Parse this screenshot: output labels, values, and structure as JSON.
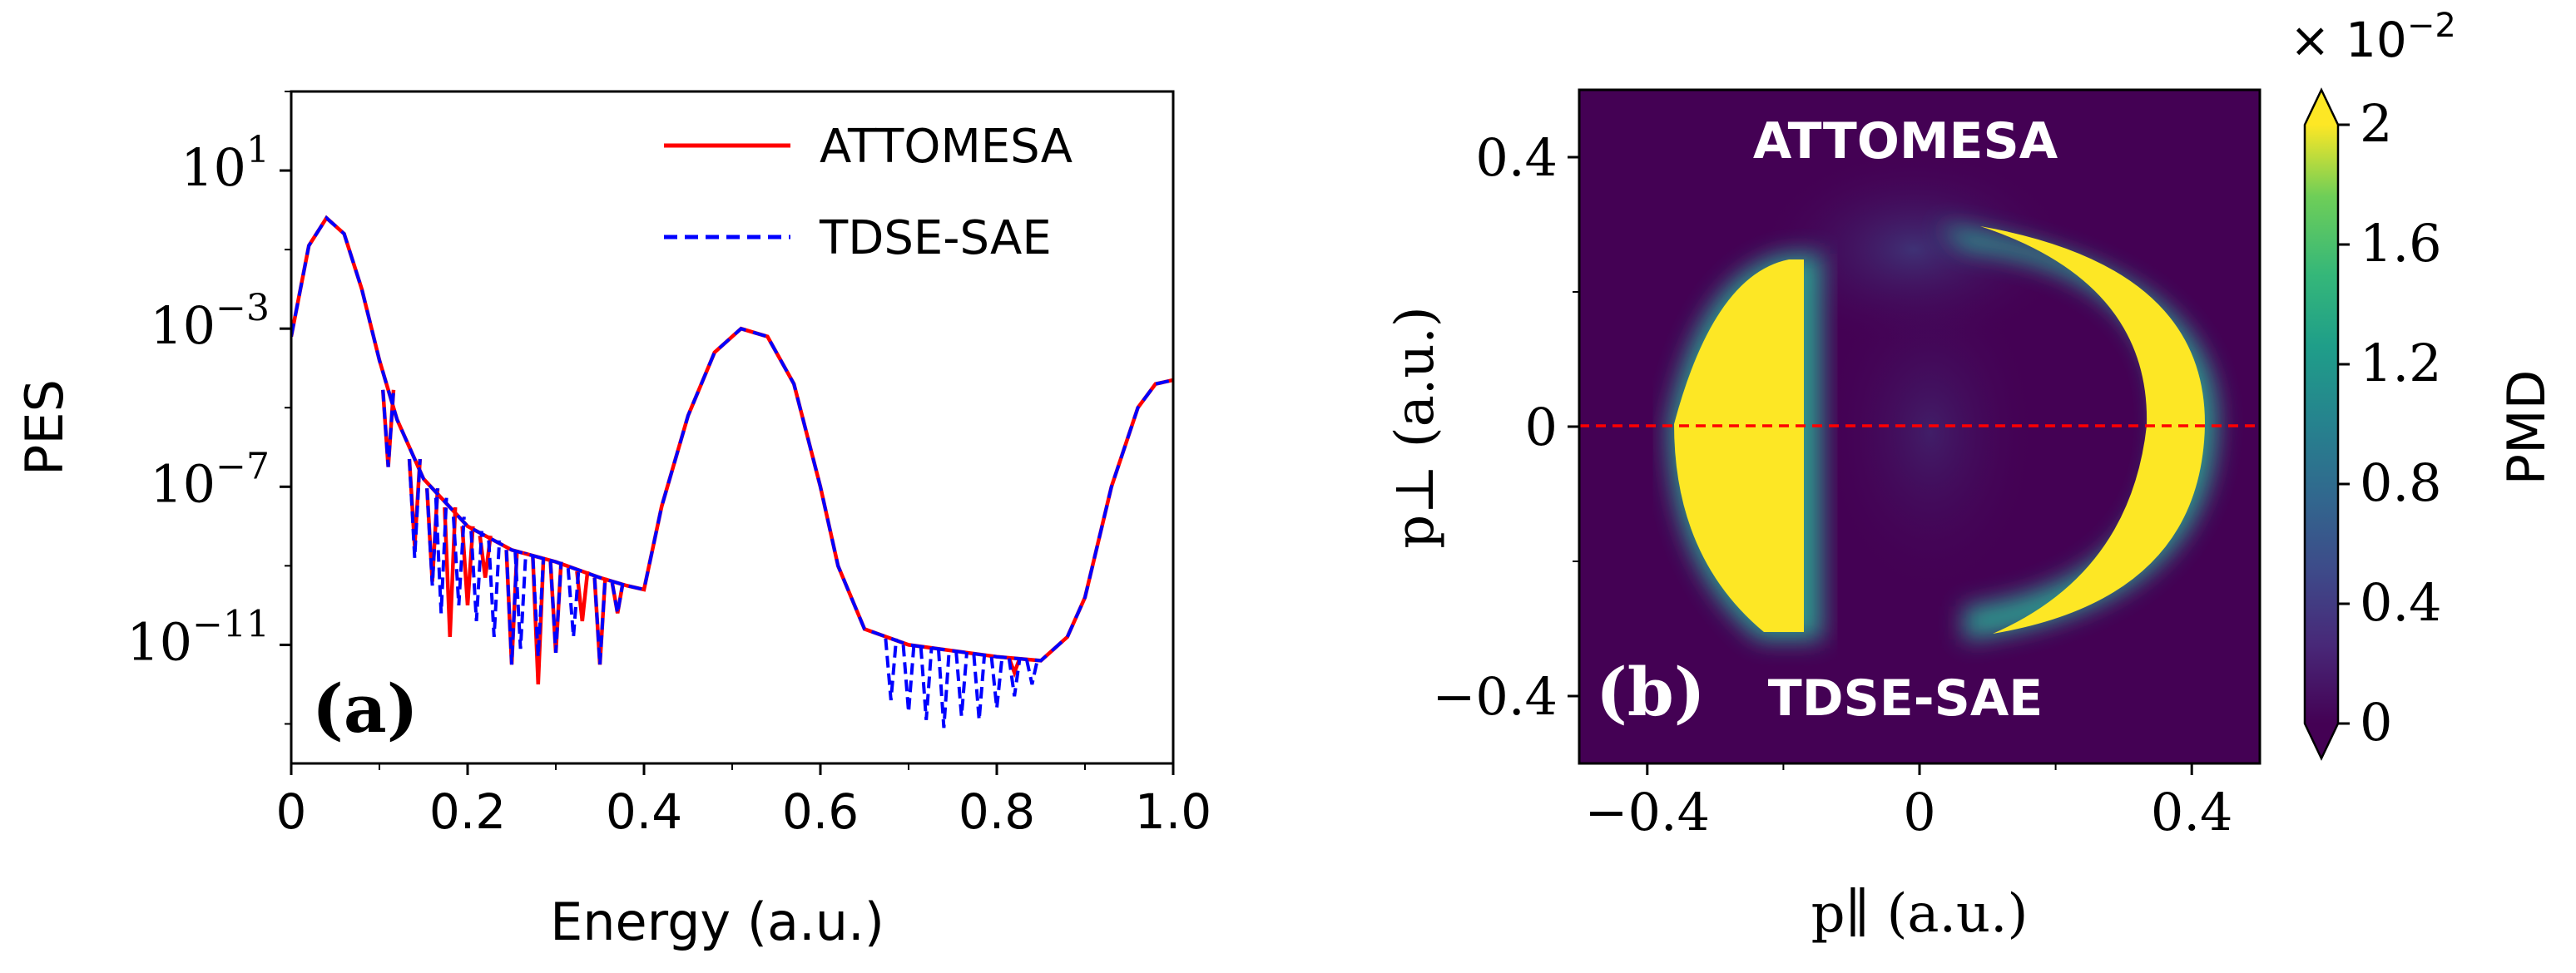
{
  "chart_data": [
    {
      "type": "line",
      "panel_label": "(a)",
      "xlabel": "Energy (a.u.)",
      "ylabel": "PES",
      "yscale": "log",
      "xlim": [
        0,
        1.0
      ],
      "ylim_log10": [
        -14,
        3
      ],
      "x_ticks": [
        0,
        0.2,
        0.4,
        0.6,
        0.8,
        1.0
      ],
      "x_tick_labels": [
        "0",
        "0.2",
        "0.4",
        "0.6",
        "0.8",
        "1.0"
      ],
      "y_ticks_log10": [
        1,
        -3,
        -7,
        -11
      ],
      "y_tick_base": "10",
      "y_tick_exponents": [
        "1",
        "−3",
        "−7",
        "−11"
      ],
      "legend": {
        "position": "top-right",
        "entries": [
          "ATTOMESA",
          "TDSE-SAE"
        ]
      },
      "series": [
        {
          "name": "ATTOMESA",
          "color": "#ff0000",
          "style": "solid",
          "points": [
            [
              0,
              -3.2
            ],
            [
              0.02,
              -0.9
            ],
            [
              0.04,
              -0.2
            ],
            [
              0.06,
              -0.6
            ],
            [
              0.08,
              -2.0
            ],
            [
              0.1,
              -3.8
            ],
            [
              0.12,
              -5.3
            ],
            [
              0.15,
              -6.8
            ],
            [
              0.2,
              -8.0
            ],
            [
              0.25,
              -8.6
            ],
            [
              0.3,
              -8.9
            ],
            [
              0.35,
              -9.3
            ],
            [
              0.38,
              -9.5
            ],
            [
              0.4,
              -9.6
            ],
            [
              0.42,
              -7.5
            ],
            [
              0.45,
              -5.2
            ],
            [
              0.48,
              -3.6
            ],
            [
              0.51,
              -3.0
            ],
            [
              0.54,
              -3.2
            ],
            [
              0.57,
              -4.4
            ],
            [
              0.6,
              -7.0
            ],
            [
              0.62,
              -9.0
            ],
            [
              0.65,
              -10.6
            ],
            [
              0.7,
              -11.0
            ],
            [
              0.8,
              -11.3
            ],
            [
              0.85,
              -11.4
            ],
            [
              0.88,
              -10.8
            ],
            [
              0.9,
              -9.8
            ],
            [
              0.93,
              -7.0
            ],
            [
              0.96,
              -5.0
            ],
            [
              0.98,
              -4.4
            ],
            [
              1.0,
              -4.3
            ]
          ],
          "dips": [
            [
              0.11,
              -6.5
            ],
            [
              0.14,
              -8.5
            ],
            [
              0.16,
              -9.4
            ],
            [
              0.18,
              -10.8
            ],
            [
              0.2,
              -10.0
            ],
            [
              0.22,
              -9.3
            ],
            [
              0.25,
              -11.5
            ],
            [
              0.28,
              -12.0
            ],
            [
              0.3,
              -11.2
            ],
            [
              0.33,
              -10.4
            ],
            [
              0.35,
              -11.5
            ],
            [
              0.37,
              -10.2
            ],
            [
              0.82,
              -11.7
            ]
          ]
        },
        {
          "name": "TDSE-SAE",
          "color": "#0000ff",
          "style": "dashed",
          "points": [
            [
              0,
              -3.2
            ],
            [
              0.02,
              -0.9
            ],
            [
              0.04,
              -0.2
            ],
            [
              0.06,
              -0.6
            ],
            [
              0.08,
              -2.0
            ],
            [
              0.1,
              -3.8
            ],
            [
              0.12,
              -5.3
            ],
            [
              0.15,
              -6.8
            ],
            [
              0.2,
              -8.0
            ],
            [
              0.25,
              -8.6
            ],
            [
              0.3,
              -8.9
            ],
            [
              0.35,
              -9.3
            ],
            [
              0.38,
              -9.5
            ],
            [
              0.4,
              -9.6
            ],
            [
              0.42,
              -7.5
            ],
            [
              0.45,
              -5.2
            ],
            [
              0.48,
              -3.6
            ],
            [
              0.51,
              -3.0
            ],
            [
              0.54,
              -3.2
            ],
            [
              0.57,
              -4.4
            ],
            [
              0.6,
              -7.0
            ],
            [
              0.62,
              -9.0
            ],
            [
              0.65,
              -10.6
            ],
            [
              0.7,
              -11.0
            ],
            [
              0.8,
              -11.3
            ],
            [
              0.85,
              -11.4
            ],
            [
              0.88,
              -10.8
            ],
            [
              0.9,
              -9.8
            ],
            [
              0.93,
              -7.0
            ],
            [
              0.96,
              -5.0
            ],
            [
              0.98,
              -4.4
            ],
            [
              1.0,
              -4.3
            ]
          ],
          "dips": [
            [
              0.11,
              -6.5
            ],
            [
              0.14,
              -8.8
            ],
            [
              0.16,
              -9.5
            ],
            [
              0.17,
              -10.2
            ],
            [
              0.19,
              -10.0
            ],
            [
              0.21,
              -10.4
            ],
            [
              0.23,
              -10.8
            ],
            [
              0.25,
              -11.5
            ],
            [
              0.26,
              -11.1
            ],
            [
              0.28,
              -11.3
            ],
            [
              0.3,
              -11.2
            ],
            [
              0.32,
              -10.8
            ],
            [
              0.35,
              -11.5
            ],
            [
              0.37,
              -10.2
            ],
            [
              0.68,
              -12.4
            ],
            [
              0.7,
              -12.7
            ],
            [
              0.72,
              -12.9
            ],
            [
              0.74,
              -13.1
            ],
            [
              0.76,
              -12.8
            ],
            [
              0.78,
              -12.9
            ],
            [
              0.8,
              -12.6
            ],
            [
              0.82,
              -12.3
            ],
            [
              0.84,
              -12.0
            ]
          ]
        }
      ]
    },
    {
      "type": "heatmap",
      "panel_label": "(b)",
      "xlabel": "p∥ (a.u.)",
      "ylabel": "p⊥ (a.u.)",
      "xlim": [
        -0.5,
        0.5
      ],
      "ylim": [
        -0.5,
        0.5
      ],
      "x_ticks": [
        -0.4,
        0,
        0.4
      ],
      "x_tick_labels": [
        "−0.4",
        "0",
        "0.4"
      ],
      "y_ticks": [
        0.4,
        0,
        -0.4
      ],
      "y_tick_labels": [
        "0.4",
        "0",
        "−0.4"
      ],
      "colormap": "viridis",
      "background_color": "#440154",
      "saturated_color": "#fde725",
      "colorbar": {
        "label": "PMD",
        "range": [
          0,
          2
        ],
        "ticks": [
          0,
          0.4,
          0.8,
          1.2,
          1.6,
          2
        ],
        "tick_labels": [
          "0",
          "0.4",
          "0.8",
          "1.2",
          "1.6",
          "2"
        ],
        "multiplier_base": "× 10",
        "multiplier_exp": "−2"
      },
      "annotations": {
        "top": "ATTOMESA",
        "bottom": "TDSE-SAE"
      },
      "reference_line": {
        "y": 0,
        "color": "#ff0000",
        "style": "dashed"
      },
      "features": [
        {
          "name": "left-lobe",
          "p_par_range": [
            -0.39,
            -0.2
          ],
          "p_perp_range": [
            -0.32,
            0.24
          ]
        },
        {
          "name": "right-crescent",
          "p_par_center": 0,
          "radius": 0.34,
          "p_perp_range": [
            -0.32,
            0.28
          ]
        }
      ]
    }
  ]
}
